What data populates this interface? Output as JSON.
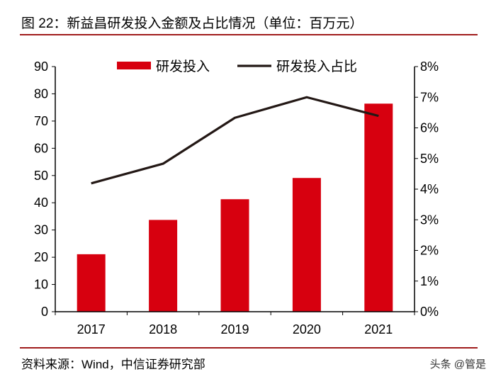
{
  "title": "图 22：新益昌研发投入金额及占比情况（单位：百万元）",
  "source": "资料来源：Wind，中信证券研究部",
  "watermark": "头条 @管是",
  "colors": {
    "bar": "#d7000f",
    "line": "#231815",
    "rule": "#a01c1c"
  },
  "chart_data": {
    "type": "bar+line",
    "categories": [
      "2017",
      "2018",
      "2019",
      "2020",
      "2021"
    ],
    "series": [
      {
        "name": "研发投入",
        "type": "bar",
        "axis": "left",
        "values": [
          21.1,
          33.7,
          41.3,
          49.1,
          76.4
        ]
      },
      {
        "name": "研发投入占比",
        "type": "line",
        "axis": "right",
        "values": [
          4.19,
          4.83,
          6.33,
          7.0,
          6.39
        ]
      }
    ],
    "y_left": {
      "range": [
        0,
        90
      ],
      "ticks": [
        "0",
        "10",
        "20",
        "30",
        "40",
        "50",
        "60",
        "70",
        "80",
        "90"
      ]
    },
    "y_right": {
      "range": [
        0,
        8
      ],
      "ticks": [
        "0%",
        "1%",
        "2%",
        "3%",
        "4%",
        "5%",
        "6%",
        "7%",
        "8%"
      ]
    },
    "grid": false,
    "legend": "top"
  }
}
